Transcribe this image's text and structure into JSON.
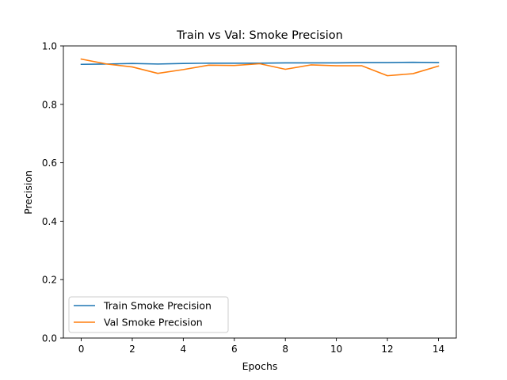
{
  "chart_data": {
    "type": "line",
    "title": "Train vs Val: Smoke Precision",
    "xlabel": "Epochs",
    "ylabel": "Precision",
    "xlim": [
      -0.7,
      14.7
    ],
    "ylim": [
      0.0,
      1.0
    ],
    "xticks": [
      0,
      2,
      4,
      6,
      8,
      10,
      12,
      14
    ],
    "yticks": [
      0.0,
      0.2,
      0.4,
      0.6,
      0.8,
      1.0
    ],
    "ytick_labels": [
      "0.0",
      "0.2",
      "0.4",
      "0.6",
      "0.8",
      "1.0"
    ],
    "grid": false,
    "legend_position": "lower-left",
    "x": [
      0,
      1,
      2,
      3,
      4,
      5,
      6,
      7,
      8,
      9,
      10,
      11,
      12,
      13,
      14
    ],
    "series": [
      {
        "name": "Train Smoke Precision",
        "color": "#1f77b4",
        "values": [
          0.937,
          0.938,
          0.94,
          0.938,
          0.94,
          0.941,
          0.941,
          0.941,
          0.942,
          0.942,
          0.942,
          0.943,
          0.943,
          0.944,
          0.943
        ]
      },
      {
        "name": "Val Smoke Precision",
        "color": "#ff7f0e",
        "values": [
          0.955,
          0.938,
          0.928,
          0.906,
          0.919,
          0.934,
          0.933,
          0.939,
          0.92,
          0.935,
          0.932,
          0.932,
          0.898,
          0.905,
          0.931
        ]
      }
    ]
  }
}
